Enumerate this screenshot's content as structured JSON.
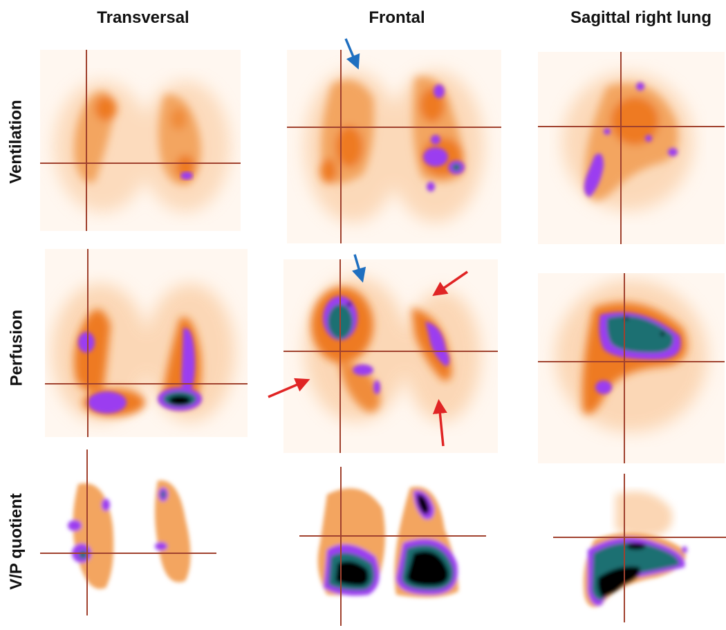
{
  "columns": [
    "Transversal",
    "Frontal",
    "Sagittal right lung"
  ],
  "rows": [
    "Ventilation",
    "Perfusion",
    "V/P quotient"
  ],
  "colors": {
    "low": "#fde6cf",
    "mid": "#f29a4a",
    "high": "#ee7a22",
    "purple": "#9b3cf0",
    "teal": "#1d6f72",
    "black": "#060606",
    "crosshair": "#a0412e",
    "arrow_blue": "#1f6fc0",
    "arrow_red": "#e02424"
  }
}
